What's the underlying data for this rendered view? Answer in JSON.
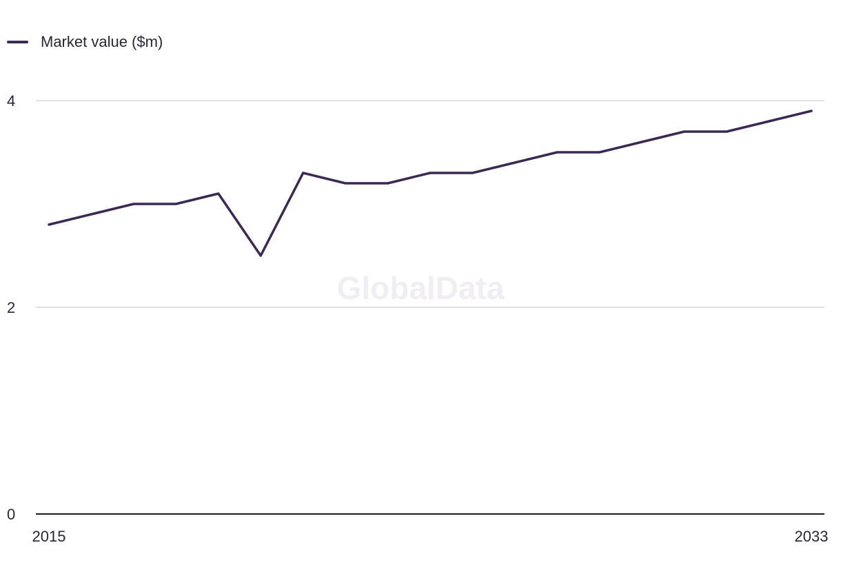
{
  "legend": {
    "series_name": "Market value ($m)"
  },
  "watermark": "GlobalData",
  "colors": {
    "line": "#3b2853",
    "grid": "#d9d9d9",
    "axis": "#1a1a1a"
  },
  "chart_data": {
    "type": "line",
    "title": "",
    "xlabel": "",
    "ylabel": "",
    "x": [
      2015,
      2016,
      2017,
      2018,
      2019,
      2020,
      2021,
      2022,
      2023,
      2024,
      2025,
      2026,
      2027,
      2028,
      2029,
      2030,
      2031,
      2032,
      2033
    ],
    "x_tick_labels": [
      "2015",
      "2033"
    ],
    "y_ticks": [
      0,
      2,
      4
    ],
    "ylim": [
      0,
      4
    ],
    "grid": true,
    "legend_position": "top-left",
    "series": [
      {
        "name": "Market value ($m)",
        "values": [
          2.8,
          2.9,
          3.0,
          3.0,
          3.1,
          2.5,
          3.3,
          3.2,
          3.2,
          3.3,
          3.3,
          3.4,
          3.5,
          3.5,
          3.6,
          3.7,
          3.7,
          3.8,
          3.9
        ]
      }
    ]
  }
}
